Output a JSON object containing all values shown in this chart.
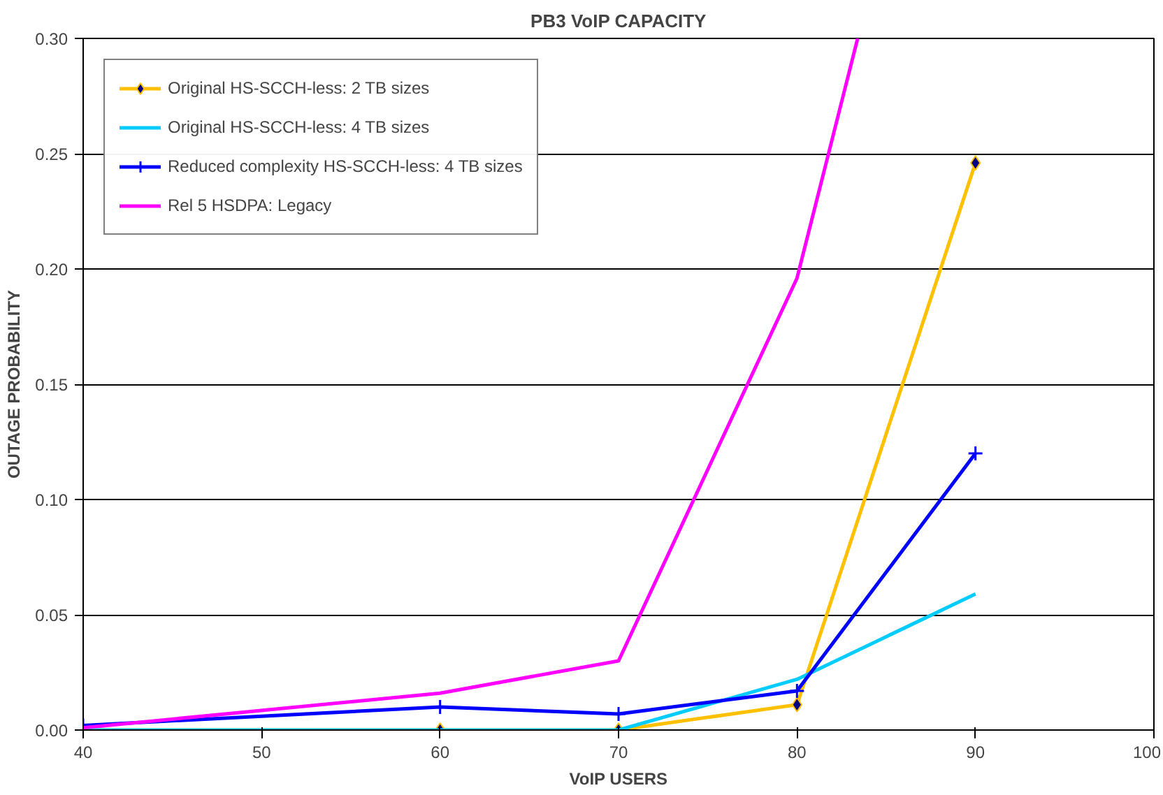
{
  "chart_data": {
    "type": "line",
    "title": "PB3 VoIP CAPACITY",
    "xlabel": "VoIP USERS",
    "ylabel": "OUTAGE PROBABILITY",
    "x": [
      40,
      60,
      70,
      80,
      90
    ],
    "series": [
      {
        "name": "Original HS-SCCH-less: 2 TB sizes",
        "color": "#ffc000",
        "marker": "diamond",
        "values": [
          0,
          0,
          0,
          0.011,
          0.246
        ]
      },
      {
        "name": "Original HS-SCCH-less: 4 TB sizes",
        "color": "#00ccff",
        "marker": "none",
        "values": [
          0,
          0,
          0,
          0.022,
          0.059
        ]
      },
      {
        "name": "Reduced complexity HS-SCCH-less: 4 TB sizes",
        "color": "#0000ff",
        "marker": "cross",
        "values": [
          0.002,
          0.01,
          0.007,
          0.017,
          0.12
        ]
      },
      {
        "name": "Rel 5 HSDPA: Legacy",
        "color": "#ff00ff",
        "marker": "none",
        "x": [
          40,
          60,
          70,
          80,
          83.4
        ],
        "values": [
          0.001,
          0.016,
          0.03,
          0.196,
          0.3
        ]
      }
    ],
    "xlim": [
      40,
      100
    ],
    "xticks": [
      40,
      50,
      60,
      70,
      80,
      90,
      100
    ],
    "ylim": [
      0,
      0.3
    ],
    "yticks": [
      {
        "value": 0,
        "label": "0.00"
      },
      {
        "value": 0.05,
        "label": "0.05"
      },
      {
        "value": 0.1,
        "label": "0.10"
      },
      {
        "value": 0.15,
        "label": "0.15"
      },
      {
        "value": 0.2,
        "label": "0.20"
      },
      {
        "value": 0.25,
        "label": "0.25"
      },
      {
        "value": 0.3,
        "label": "0.30"
      }
    ],
    "grid": "y",
    "legend": "top left",
    "line_style": "solid"
  }
}
